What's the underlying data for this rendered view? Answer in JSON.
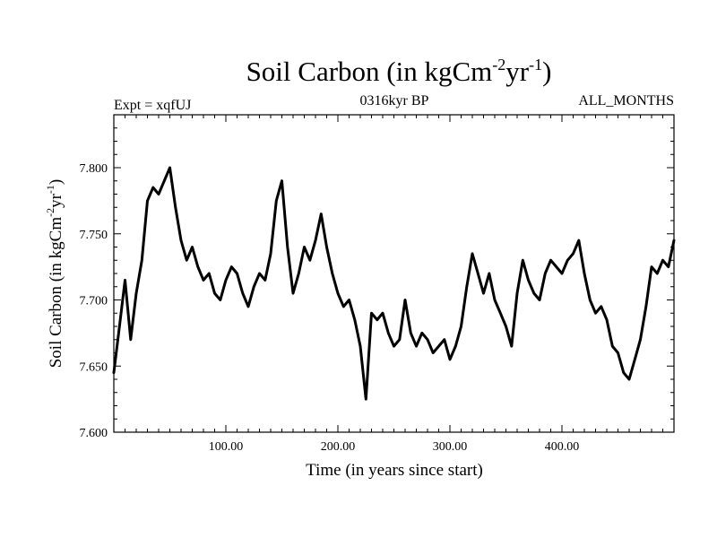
{
  "chart_data": {
    "type": "line",
    "title": "Soil Carbon (in kgCm",
    "title_sup1": "-2",
    "title_mid": "yr",
    "title_sup2": "-1",
    "title_end": ")",
    "subtitle_left": "Expt = xqfUJ",
    "subtitle_center": "0316kyr BP",
    "subtitle_right": "ALL_MONTHS",
    "xlabel": "Time (in years since start)",
    "ylabel": "Soil Carbon (in kgCm",
    "ylabel_sup1": "-2",
    "ylabel_mid": "yr",
    "ylabel_sup2": "-1",
    "ylabel_end": ")",
    "xlim": [
      0,
      500
    ],
    "ylim": [
      7.6,
      7.84
    ],
    "x_ticks": [
      100,
      200,
      300,
      400
    ],
    "x_tick_labels": [
      "100.00",
      "200.00",
      "300.00",
      "400.00"
    ],
    "y_ticks": [
      7.6,
      7.65,
      7.7,
      7.75,
      7.8
    ],
    "y_tick_labels": [
      "7.600",
      "7.650",
      "7.700",
      "7.750",
      "7.800"
    ],
    "grid": false,
    "line_color": "#000000",
    "series": [
      {
        "x": [
          0,
          5,
          10,
          15,
          20,
          25,
          30,
          35,
          40,
          45,
          50,
          55,
          60,
          65,
          70,
          75,
          80,
          85,
          90,
          95,
          100,
          105,
          110,
          115,
          120,
          125,
          130,
          135,
          140,
          145,
          150,
          155,
          160,
          165,
          170,
          175,
          180,
          185,
          190,
          195,
          200,
          205,
          210,
          215,
          220,
          225,
          230,
          235,
          240,
          245,
          250,
          255,
          260,
          265,
          270,
          275,
          280,
          285,
          290,
          295,
          300,
          305,
          310,
          315,
          320,
          325,
          330,
          335,
          340,
          345,
          350,
          355,
          360,
          365,
          370,
          375,
          380,
          385,
          390,
          395,
          400,
          405,
          410,
          415,
          420,
          425,
          430,
          435,
          440,
          445,
          450,
          455,
          460,
          465,
          470,
          475,
          480,
          485,
          490,
          495,
          500
        ],
        "values": [
          7.645,
          7.68,
          7.715,
          7.67,
          7.705,
          7.73,
          7.775,
          7.785,
          7.78,
          7.79,
          7.8,
          7.77,
          7.745,
          7.73,
          7.74,
          7.725,
          7.715,
          7.72,
          7.705,
          7.7,
          7.715,
          7.725,
          7.72,
          7.705,
          7.695,
          7.71,
          7.72,
          7.715,
          7.735,
          7.775,
          7.79,
          7.74,
          7.705,
          7.72,
          7.74,
          7.73,
          7.745,
          7.765,
          7.74,
          7.72,
          7.705,
          7.695,
          7.7,
          7.685,
          7.665,
          7.625,
          7.69,
          7.685,
          7.69,
          7.675,
          7.665,
          7.67,
          7.7,
          7.675,
          7.665,
          7.675,
          7.67,
          7.66,
          7.665,
          7.67,
          7.655,
          7.665,
          7.68,
          7.71,
          7.735,
          7.72,
          7.705,
          7.72,
          7.7,
          7.69,
          7.68,
          7.665,
          7.705,
          7.73,
          7.715,
          7.705,
          7.7,
          7.72,
          7.73,
          7.725,
          7.72,
          7.73,
          7.735,
          7.745,
          7.72,
          7.7,
          7.69,
          7.695,
          7.685,
          7.665,
          7.66,
          7.645,
          7.64,
          7.655,
          7.67,
          7.695,
          7.725,
          7.72,
          7.73,
          7.725,
          7.745
        ]
      }
    ]
  }
}
